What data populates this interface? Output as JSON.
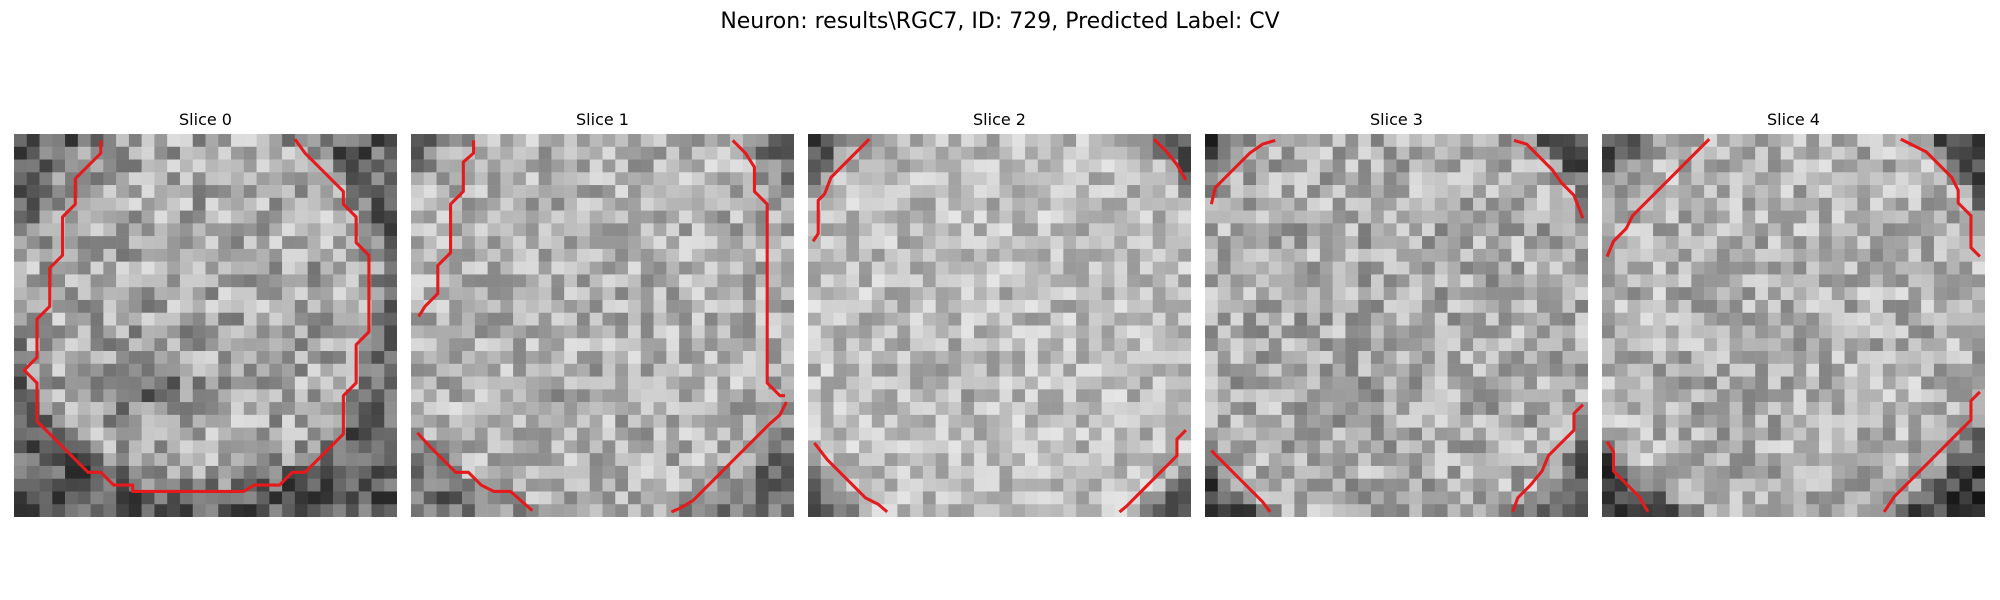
{
  "figure": {
    "title": "Neuron: results\\RGC7, ID: 729, Predicted Label: CV",
    "contour_color": "#e41a1c",
    "slices": [
      {
        "label": "Slice 0"
      },
      {
        "label": "Slice 1"
      },
      {
        "label": "Slice 2"
      },
      {
        "label": "Slice 3"
      },
      {
        "label": "Slice 4"
      }
    ]
  }
}
